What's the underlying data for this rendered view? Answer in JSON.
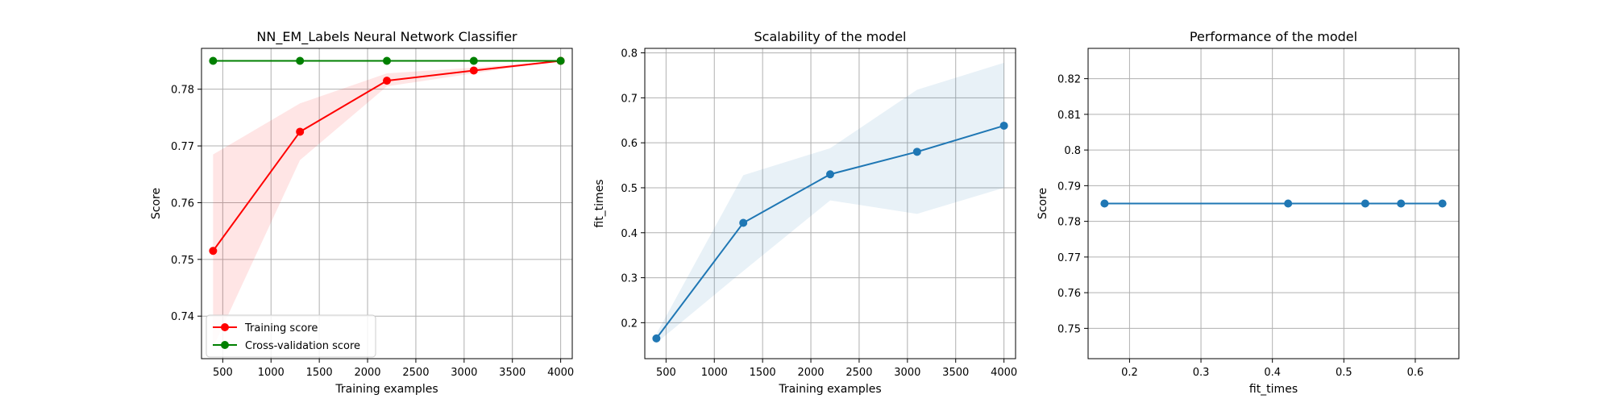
{
  "chart_data": [
    {
      "type": "line",
      "title": "NN_EM_Labels Neural Network Classifier",
      "xlabel": "Training examples",
      "ylabel": "Score",
      "xlim": [
        280,
        4120
      ],
      "ylim": [
        0.7325,
        0.7872
      ],
      "xticks": [
        500,
        1000,
        1500,
        2000,
        2500,
        3000,
        3500,
        4000
      ],
      "yticks": [
        0.74,
        0.75,
        0.76,
        0.77,
        0.78
      ],
      "grid": true,
      "legend": "lower-left",
      "series": [
        {
          "name": "Training score",
          "color": "#ff0000",
          "x": [
            400,
            1300,
            2200,
            3100,
            4000
          ],
          "y": [
            0.7515,
            0.7725,
            0.7815,
            0.7833,
            0.785
          ],
          "band_lower": [
            0.7345,
            0.7675,
            0.7805,
            0.7828,
            0.785
          ],
          "band_upper": [
            0.7685,
            0.7775,
            0.7828,
            0.7838,
            0.785
          ],
          "band_color": "#ff0000"
        },
        {
          "name": "Cross-validation score",
          "color": "#008000",
          "x": [
            400,
            1300,
            2200,
            3100,
            4000
          ],
          "y": [
            0.785,
            0.785,
            0.785,
            0.785,
            0.785
          ]
        }
      ]
    },
    {
      "type": "line",
      "title": "Scalability of the model",
      "xlabel": "Training examples",
      "ylabel": "fit_times",
      "xlim": [
        280,
        4120
      ],
      "ylim": [
        0.12,
        0.81
      ],
      "xticks": [
        500,
        1000,
        1500,
        2000,
        2500,
        3000,
        3500,
        4000
      ],
      "yticks": [
        0.2,
        0.3,
        0.4,
        0.5,
        0.6,
        0.7,
        0.8
      ],
      "grid": true,
      "series": [
        {
          "color": "#1f77b4",
          "x": [
            400,
            1300,
            2200,
            3100,
            4000
          ],
          "y": [
            0.165,
            0.422,
            0.53,
            0.58,
            0.638
          ],
          "band_lower": [
            0.155,
            0.315,
            0.472,
            0.442,
            0.5
          ],
          "band_upper": [
            0.175,
            0.528,
            0.588,
            0.718,
            0.778
          ],
          "band_color": "#1f77b4"
        }
      ]
    },
    {
      "type": "line",
      "title": "Performance of the model",
      "xlabel": "fit_times",
      "ylabel": "Score",
      "xlim": [
        0.142,
        0.661
      ],
      "ylim": [
        0.7415,
        0.8285
      ],
      "xticks": [
        0.2,
        0.3,
        0.4,
        0.5,
        0.6
      ],
      "yticks": [
        0.75,
        0.76,
        0.77,
        0.78,
        0.79,
        0.8,
        0.81,
        0.82
      ],
      "grid": true,
      "series": [
        {
          "color": "#1f77b4",
          "x": [
            0.165,
            0.422,
            0.53,
            0.58,
            0.638
          ],
          "y": [
            0.785,
            0.785,
            0.785,
            0.785,
            0.785
          ]
        }
      ]
    }
  ]
}
